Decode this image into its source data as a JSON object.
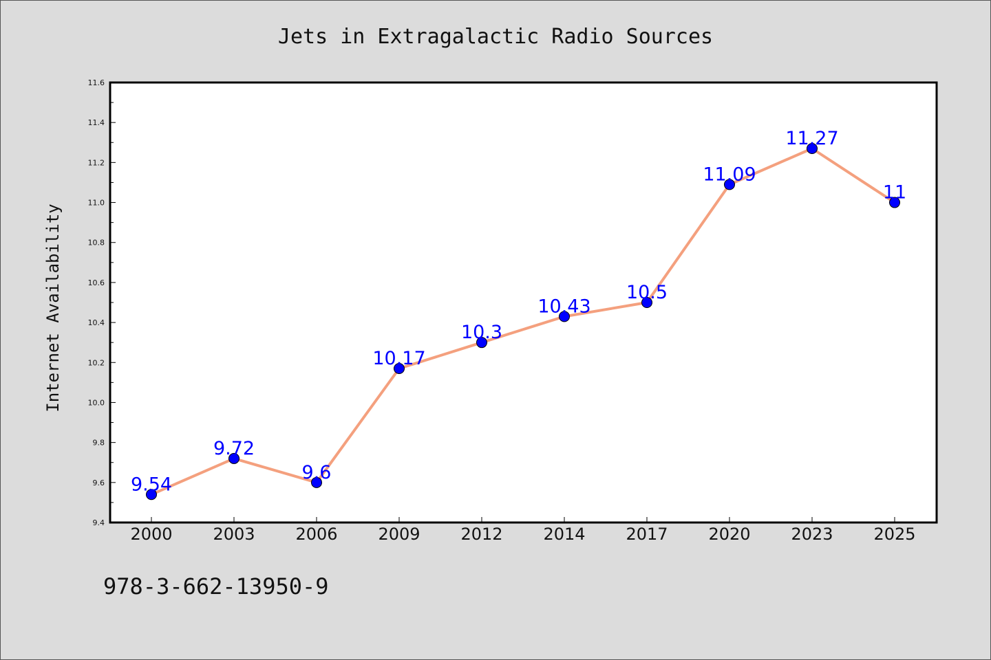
{
  "colors": {
    "background": "#dcdcdc",
    "plot_background": "#ffffff",
    "line": "#f4a07e",
    "marker": "#0000ff",
    "data_label": "#0000ff"
  },
  "footer": {
    "isbn": "978-3-662-13950-9"
  },
  "chart_data": {
    "type": "line",
    "title": "Jets in Extragalactic Radio Sources",
    "xlabel": "",
    "ylabel": "Internet Availability",
    "categories": [
      "2000",
      "2003",
      "2006",
      "2009",
      "2012",
      "2014",
      "2017",
      "2020",
      "2023",
      "2025"
    ],
    "series": [
      {
        "values": [
          9.54,
          9.72,
          9.6,
          10.17,
          10.3,
          10.43,
          10.5,
          11.09,
          11.27,
          11
        ],
        "labels": [
          "9.54",
          "9.72",
          "9.6",
          "10.17",
          "10.3",
          "10.43",
          "10.5",
          "11.09",
          "11.27",
          "11"
        ]
      }
    ],
    "ylim": [
      9.4,
      11.6
    ],
    "yticks": [
      "9.4",
      "9.6",
      "9.8",
      "10.0",
      "10.2",
      "10.4",
      "10.6",
      "10.8",
      "11.0",
      "11.2",
      "11.4",
      "11.6"
    ],
    "grid": false,
    "legend": "none"
  }
}
